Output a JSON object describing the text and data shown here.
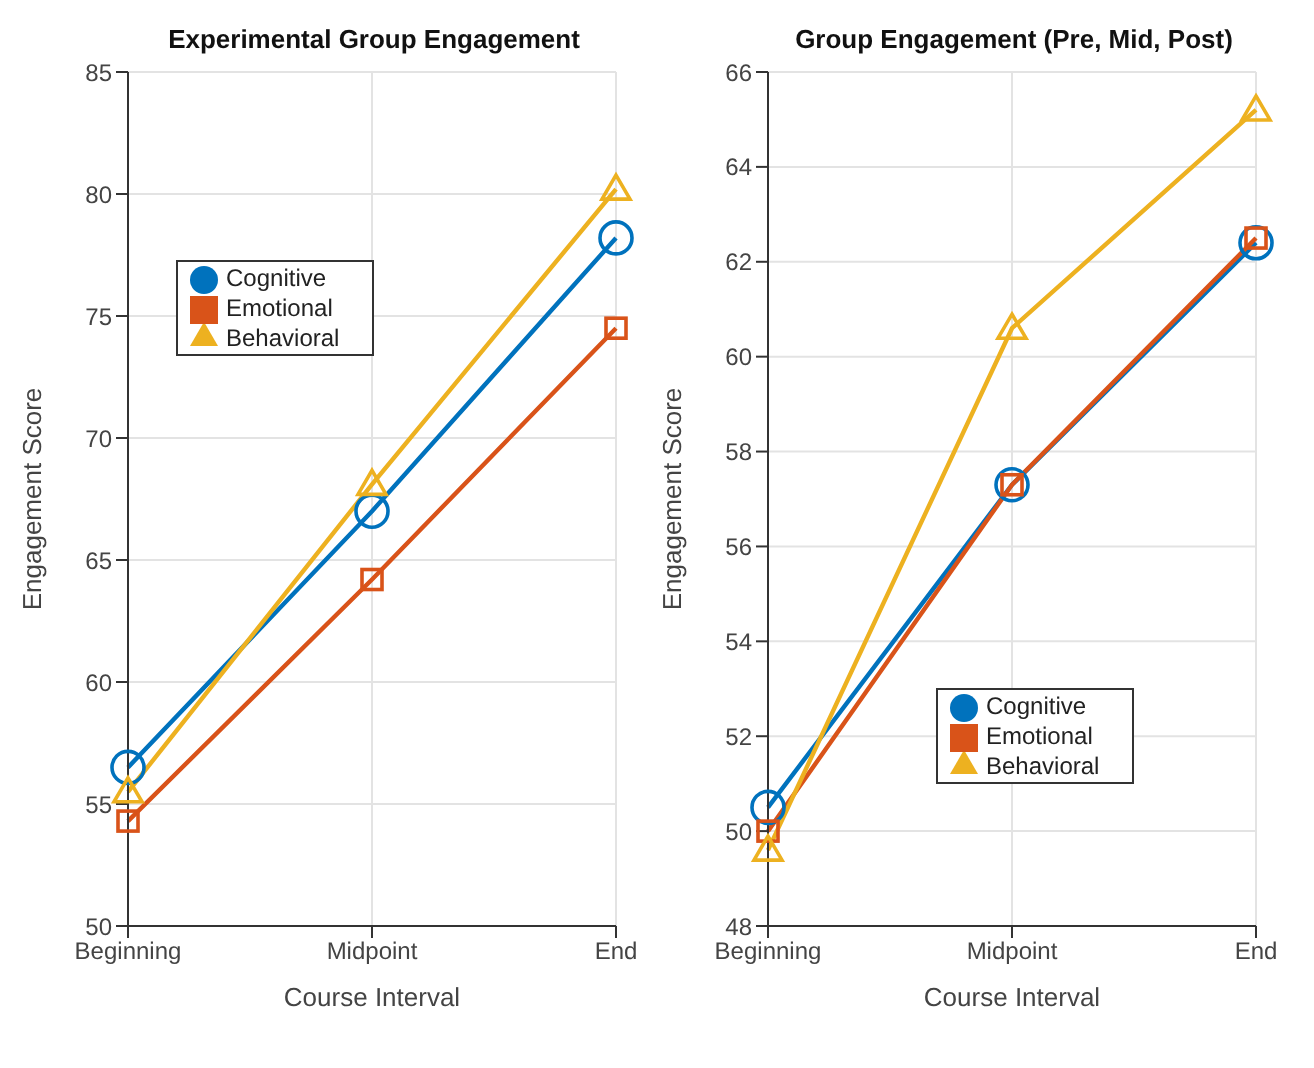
{
  "chart_data": [
    {
      "type": "line",
      "title": "Experimental Group Engagement",
      "xlabel": "Course Interval",
      "ylabel": "Engagement Score",
      "categories": [
        "Beginning",
        "Midpoint",
        "End"
      ],
      "ylim": [
        50,
        85
      ],
      "yticks": [
        50,
        55,
        60,
        65,
        70,
        75,
        80,
        85
      ],
      "grid": true,
      "legend": "top left",
      "series": [
        {
          "name": "Cognitive",
          "color": "#0072bd",
          "marker": "circle",
          "values": [
            56.5,
            67.0,
            78.2
          ]
        },
        {
          "name": "Emotional",
          "color": "#d95319",
          "marker": "square",
          "values": [
            54.3,
            64.2,
            74.5
          ]
        },
        {
          "name": "Behavioral",
          "color": "#edb120",
          "marker": "triangle",
          "values": [
            55.5,
            68.1,
            80.2
          ]
        }
      ]
    },
    {
      "type": "line",
      "title": "Group Engagement (Pre, Mid, Post)",
      "xlabel": "Course Interval",
      "ylabel": "Engagement Score",
      "categories": [
        "Beginning",
        "Midpoint",
        "End"
      ],
      "ylim": [
        48,
        66
      ],
      "yticks": [
        48,
        50,
        52,
        54,
        56,
        58,
        60,
        62,
        64,
        66
      ],
      "grid": true,
      "legend": "bottom right",
      "series": [
        {
          "name": "Cognitive",
          "color": "#0072bd",
          "marker": "circle",
          "values": [
            50.5,
            57.3,
            62.4
          ]
        },
        {
          "name": "Emotional",
          "color": "#d95319",
          "marker": "square",
          "values": [
            50.0,
            57.3,
            62.5
          ]
        },
        {
          "name": "Behavioral",
          "color": "#edb120",
          "marker": "triangle",
          "values": [
            49.6,
            60.6,
            65.2
          ]
        }
      ]
    }
  ]
}
